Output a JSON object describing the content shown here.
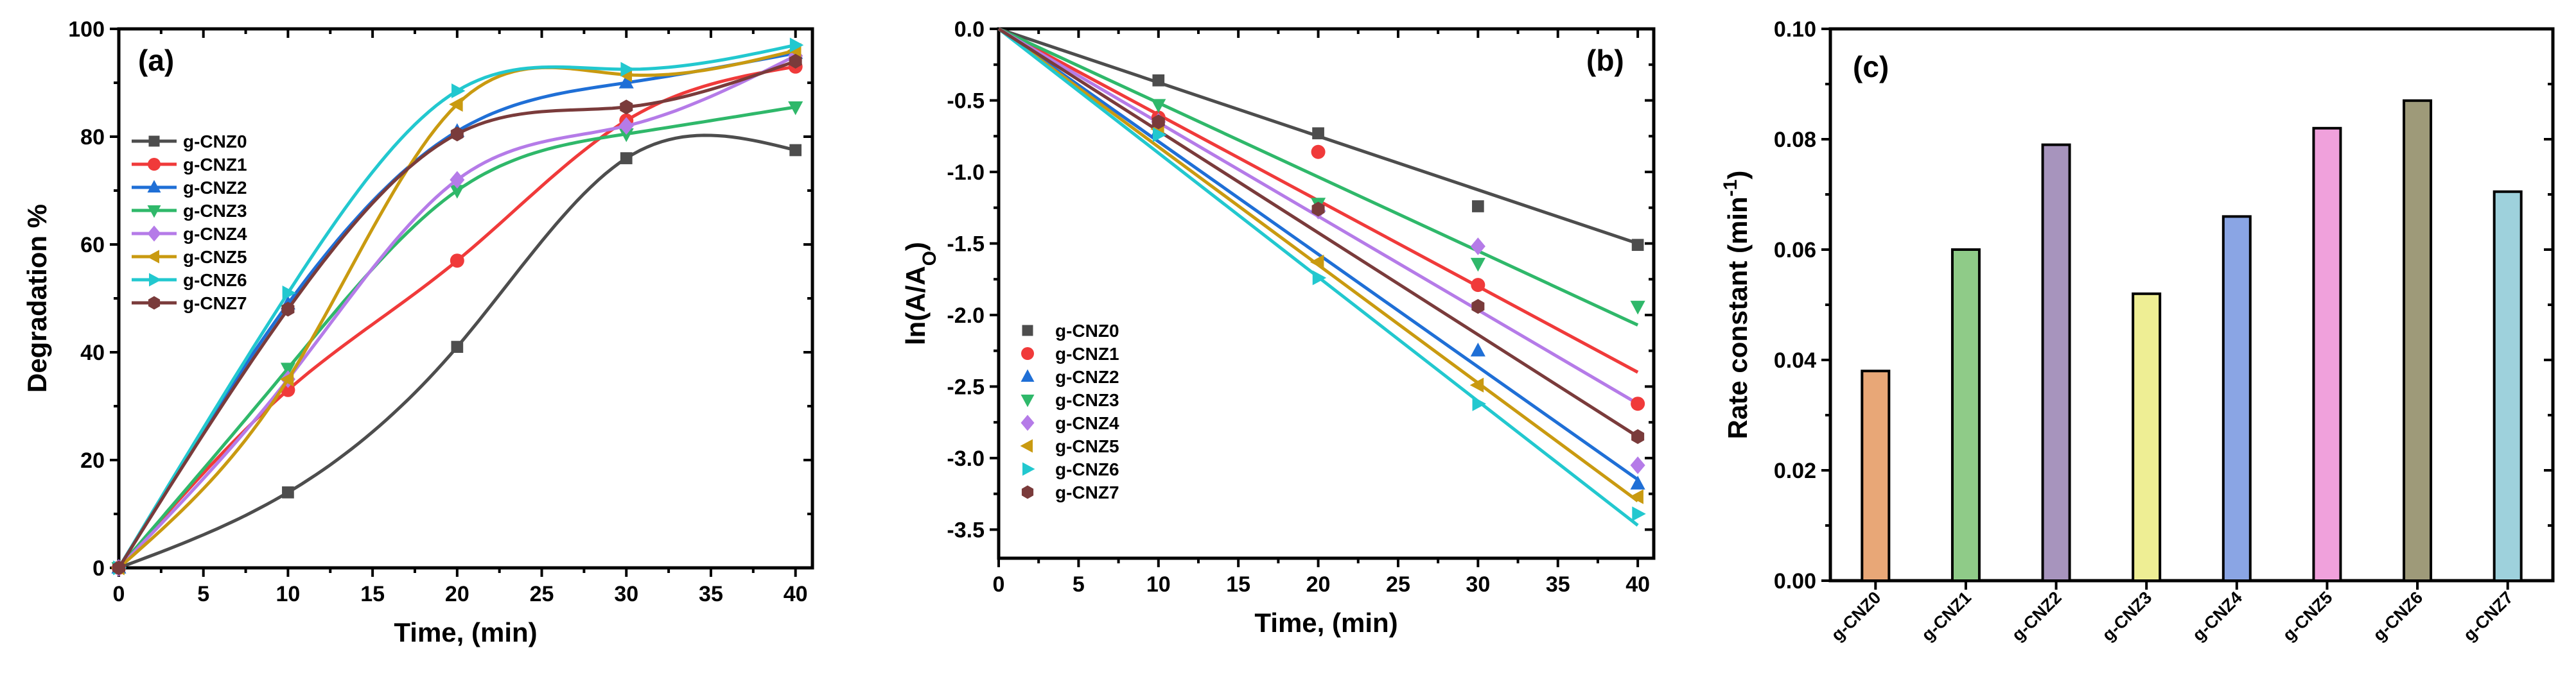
{
  "chart_data": [
    {
      "panel": "(a)",
      "type": "line",
      "xlabel": "Time, (min)",
      "ylabel": "Degradation %",
      "xlim": [
        0,
        41
      ],
      "ylim": [
        0,
        100
      ],
      "xticks": [
        0,
        5,
        10,
        15,
        20,
        25,
        30,
        35,
        40
      ],
      "yticks": [
        0,
        20,
        40,
        60,
        80,
        100
      ],
      "legend_position": "left",
      "x": [
        0,
        10,
        20,
        30,
        40
      ],
      "series": [
        {
          "name": "g-CNZ0",
          "color": "#4d4d4d",
          "marker": "square",
          "values": [
            0,
            14,
            41,
            76,
            77.5
          ]
        },
        {
          "name": "g-CNZ1",
          "color": "#f03a3a",
          "marker": "circle",
          "values": [
            0,
            33,
            57,
            83,
            93
          ]
        },
        {
          "name": "g-CNZ2",
          "color": "#1f6fd6",
          "marker": "triangle-up",
          "values": [
            0,
            49,
            81,
            90,
            95.5
          ]
        },
        {
          "name": "g-CNZ3",
          "color": "#2fb86a",
          "marker": "triangle-down",
          "values": [
            0,
            37,
            70,
            80.5,
            85.5
          ]
        },
        {
          "name": "g-CNZ4",
          "color": "#b57be8",
          "marker": "diamond",
          "values": [
            0,
            35,
            72,
            82,
            95
          ]
        },
        {
          "name": "g-CNZ5",
          "color": "#c99a10",
          "marker": "triangle-left",
          "values": [
            0,
            35,
            86,
            91.5,
            96
          ]
        },
        {
          "name": "g-CNZ6",
          "color": "#22c8cf",
          "marker": "triangle-right",
          "values": [
            0,
            51,
            88.5,
            92.5,
            97
          ]
        },
        {
          "name": "g-CNZ7",
          "color": "#7a3b3b",
          "marker": "hexagon",
          "values": [
            0,
            48,
            80.5,
            85.5,
            94
          ]
        }
      ]
    },
    {
      "panel": "(b)",
      "type": "scatter",
      "xlabel": "Time, (min)",
      "ylabel": "ln(A/AO)",
      "ylabel_main": "ln(A/A",
      "ylabel_sub": "O",
      "ylabel_end": ")",
      "xlim": [
        0,
        41
      ],
      "ylim": [
        -3.7,
        0
      ],
      "xticks": [
        0,
        5,
        10,
        15,
        20,
        25,
        30,
        35,
        40
      ],
      "yticks": [
        0.0,
        -0.5,
        -1.0,
        -1.5,
        -2.0,
        -2.5,
        -3.0,
        -3.5
      ],
      "ytick_labels": [
        "0.0",
        "-0.5",
        "-1.0",
        "-1.5",
        "-2.0",
        "-2.5",
        "-3.0",
        "-3.5"
      ],
      "legend_position": "bottom-left",
      "x": [
        0,
        10,
        20,
        30,
        40
      ],
      "series": [
        {
          "name": "g-CNZ0",
          "color": "#4d4d4d",
          "marker": "square",
          "values": [
            0,
            -0.36,
            -0.73,
            -1.24,
            -1.51
          ],
          "fit_end": -1.5
        },
        {
          "name": "g-CNZ1",
          "color": "#f03a3a",
          "marker": "circle",
          "values": [
            0,
            -0.62,
            -0.86,
            -1.79,
            -2.62
          ],
          "fit_end": -2.4
        },
        {
          "name": "g-CNZ2",
          "color": "#1f6fd6",
          "marker": "triangle-up",
          "values": [
            0,
            -0.71,
            -1.24,
            -2.25,
            -3.18
          ],
          "fit_end": -3.15
        },
        {
          "name": "g-CNZ3",
          "color": "#2fb86a",
          "marker": "triangle-down",
          "values": [
            0,
            -0.53,
            -1.22,
            -1.64,
            -1.94
          ],
          "fit_end": -2.07
        },
        {
          "name": "g-CNZ4",
          "color": "#b57be8",
          "marker": "diamond",
          "values": [
            0,
            -0.65,
            -1.27,
            -1.52,
            -3.05
          ],
          "fit_end": -2.62
        },
        {
          "name": "g-CNZ5",
          "color": "#c99a10",
          "marker": "triangle-left",
          "values": [
            0,
            -0.7,
            -1.63,
            -2.49,
            -3.27
          ],
          "fit_end": -3.3
        },
        {
          "name": "g-CNZ6",
          "color": "#22c8cf",
          "marker": "triangle-right",
          "values": [
            0,
            -0.74,
            -1.74,
            -2.62,
            -3.39
          ],
          "fit_end": -3.47
        },
        {
          "name": "g-CNZ7",
          "color": "#7a3b3b",
          "marker": "hexagon",
          "values": [
            0,
            -0.65,
            -1.26,
            -1.94,
            -2.85
          ],
          "fit_end": -2.85
        }
      ]
    },
    {
      "panel": "(c)",
      "type": "bar",
      "xlabel": "",
      "ylabel": "Rate constant (min-1)",
      "ylabel_main": "Rate constant (min",
      "ylabel_sup": "-1",
      "ylabel_end": ")",
      "ylim": [
        0,
        0.1
      ],
      "yticks": [
        0.0,
        0.02,
        0.04,
        0.06,
        0.08,
        0.1
      ],
      "ytick_labels": [
        "0.00",
        "0.02",
        "0.04",
        "0.06",
        "0.08",
        "0.10"
      ],
      "categories": [
        "g-CNZ0",
        "g-CNZ1",
        "g-CNZ2",
        "g-CNZ3",
        "g-CNZ4",
        "g-CNZ5",
        "g-CNZ6",
        "g-CNZ7"
      ],
      "values": [
        0.038,
        0.06,
        0.079,
        0.052,
        0.066,
        0.082,
        0.087,
        0.0705
      ],
      "colors": [
        "#e8a777",
        "#8fcb88",
        "#a794bd",
        "#eeee94",
        "#8aa5e4",
        "#f0a1dc",
        "#9e9a79",
        "#9ed1dc"
      ]
    }
  ]
}
